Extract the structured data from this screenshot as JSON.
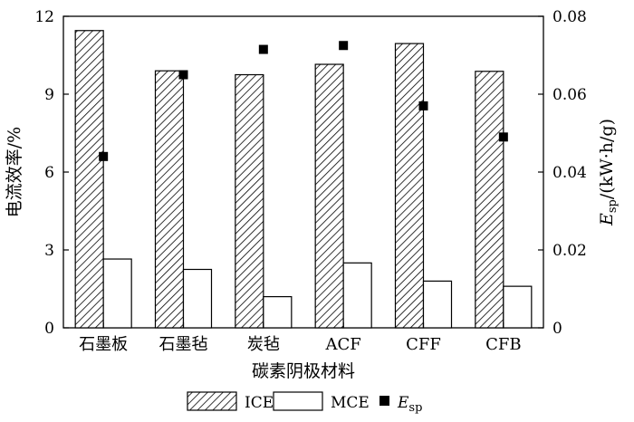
{
  "chart_data": {
    "type": "bar",
    "categories": [
      "石墨板",
      "石墨毡",
      "炭毡",
      "ACF",
      "CFF",
      "CFB"
    ],
    "xlabel": "碳素阴极材料",
    "ylabel_left": "电流效率/%",
    "ylabel_right_var": "E",
    "ylabel_right_sub": "sp",
    "ylabel_right_unit": "/(kW·h/g)",
    "ylim_left": [
      0,
      12
    ],
    "ylim_right": [
      0,
      0.08
    ],
    "yticks_left": [
      "0",
      "3",
      "6",
      "9",
      "12"
    ],
    "yticks_right": [
      "0",
      "0.02",
      "0.04",
      "0.06",
      "0.08"
    ],
    "series": [
      {
        "name": "ICE",
        "kind": "bar",
        "axis": "left",
        "pattern": "hatched",
        "values": [
          11.45,
          9.9,
          9.75,
          10.15,
          10.95,
          9.88
        ]
      },
      {
        "name": "MCE",
        "kind": "bar",
        "axis": "left",
        "pattern": "white",
        "values": [
          2.65,
          2.25,
          1.2,
          2.5,
          1.8,
          1.6
        ]
      },
      {
        "name": "Esp",
        "kind": "scatter",
        "axis": "right",
        "marker": "square",
        "values": [
          0.044,
          0.065,
          0.0715,
          0.0725,
          0.057,
          0.049
        ]
      }
    ],
    "legend": {
      "placement": "bottom",
      "items": [
        {
          "label": "ICE",
          "swatch": "hatched"
        },
        {
          "label": "MCE",
          "swatch": "white"
        },
        {
          "label_var": "E",
          "label_sub": "sp",
          "swatch": "square"
        }
      ]
    },
    "grid": false
  }
}
